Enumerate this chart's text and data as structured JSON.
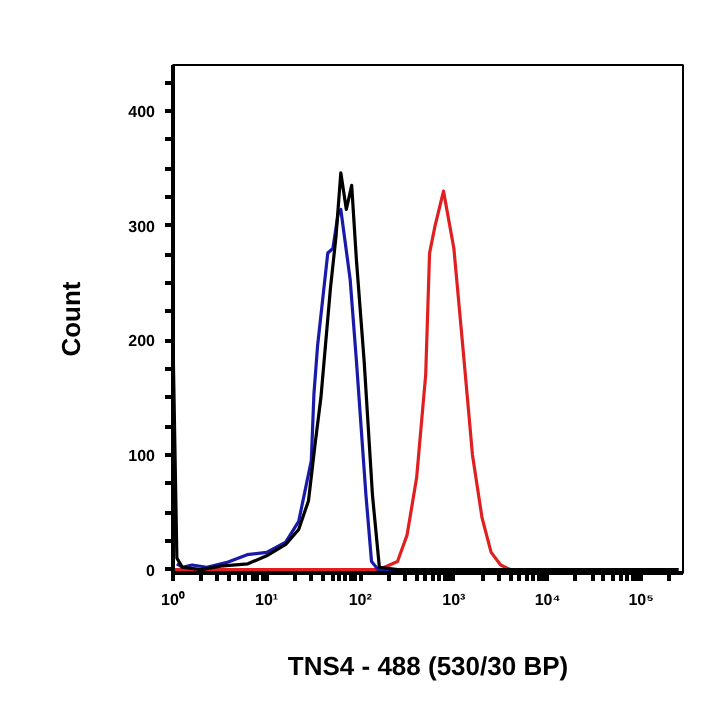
{
  "chart_data": {
    "type": "line",
    "xlabel": "TNS4 - 488 (530/30 BP)",
    "ylabel": "Count",
    "log": "x",
    "grid": false,
    "marker": "none",
    "line_style": "solid",
    "xlim": [
      1,
      280000
    ],
    "ylim": [
      -3,
      440
    ],
    "xticks": [
      {
        "value": 1,
        "label": "10⁰"
      },
      {
        "value": 2,
        "label": null
      },
      {
        "value": 3,
        "label": null
      },
      {
        "value": 4,
        "label": null
      },
      {
        "value": 5,
        "label": null
      },
      {
        "value": 6,
        "label": null
      },
      {
        "value": 7,
        "label": null
      },
      {
        "value": 8,
        "label": null
      },
      {
        "value": 9,
        "label": null
      },
      {
        "value": 10,
        "label": "10¹"
      },
      {
        "value": 20,
        "label": null
      },
      {
        "value": 30,
        "label": null
      },
      {
        "value": 40,
        "label": null
      },
      {
        "value": 50,
        "label": null
      },
      {
        "value": 60,
        "label": null
      },
      {
        "value": 70,
        "label": null
      },
      {
        "value": 80,
        "label": null
      },
      {
        "value": 90,
        "label": null
      },
      {
        "value": 100,
        "label": "10²"
      },
      {
        "value": 200,
        "label": null
      },
      {
        "value": 300,
        "label": null
      },
      {
        "value": 400,
        "label": null
      },
      {
        "value": 500,
        "label": null
      },
      {
        "value": 600,
        "label": null
      },
      {
        "value": 700,
        "label": null
      },
      {
        "value": 800,
        "label": null
      },
      {
        "value": 900,
        "label": null
      },
      {
        "value": 1000,
        "label": "10³"
      },
      {
        "value": 2000,
        "label": null
      },
      {
        "value": 3000,
        "label": null
      },
      {
        "value": 4000,
        "label": null
      },
      {
        "value": 5000,
        "label": null
      },
      {
        "value": 6000,
        "label": null
      },
      {
        "value": 7000,
        "label": null
      },
      {
        "value": 8000,
        "label": null
      },
      {
        "value": 9000,
        "label": null
      },
      {
        "value": 10000,
        "label": "10⁴"
      },
      {
        "value": 20000,
        "label": null
      },
      {
        "value": 30000,
        "label": null
      },
      {
        "value": 40000,
        "label": null
      },
      {
        "value": 50000,
        "label": null
      },
      {
        "value": 60000,
        "label": null
      },
      {
        "value": 70000,
        "label": null
      },
      {
        "value": 80000,
        "label": null
      },
      {
        "value": 90000,
        "label": null
      },
      {
        "value": 100000,
        "label": "10⁵"
      },
      {
        "value": 200000,
        "label": null
      }
    ],
    "yticks": [
      0,
      {
        "value": 25,
        "label": null
      },
      {
        "value": 50,
        "label": null
      },
      {
        "value": 75,
        "label": null
      },
      100,
      {
        "value": 125,
        "label": null
      },
      {
        "value": 150,
        "label": null
      },
      {
        "value": 175,
        "label": null
      },
      200,
      {
        "value": 225,
        "label": null
      },
      {
        "value": 250,
        "label": null
      },
      {
        "value": 275,
        "label": null
      },
      300,
      {
        "value": 325,
        "label": null
      },
      {
        "value": 350,
        "label": null
      },
      {
        "value": 375,
        "label": null
      },
      400,
      {
        "value": 425,
        "label": null
      }
    ],
    "series": [
      {
        "color": "#e02020",
        "x": [
          1,
          160,
          250,
          316,
          400,
          500,
          550,
          630,
          775,
          1000,
          1260,
          1580,
          2000,
          2500,
          3160,
          4000,
          250000
        ],
        "values": [
          0,
          0,
          7,
          30,
          80,
          170,
          276,
          300,
          330,
          280,
          190,
          100,
          45,
          15,
          4,
          0,
          0
        ]
      },
      {
        "color": "#1a1aaa",
        "x": [
          1.1,
          1.26,
          1.6,
          2.3,
          3.7,
          6.2,
          10,
          16,
          22,
          30,
          32,
          35,
          45,
          51,
          58,
          62,
          78,
          91,
          115,
          132,
          155,
          250000
        ],
        "values": [
          5,
          2,
          4,
          2,
          6,
          13,
          15,
          24,
          42,
          95,
          153,
          195,
          276,
          280,
          310,
          314,
          253,
          182,
          65,
          7,
          0,
          0
        ]
      },
      {
        "color": "#000000",
        "x": [
          1,
          1.1,
          1.26,
          2,
          3.2,
          6.3,
          10,
          16,
          22,
          28,
          33,
          38,
          48,
          55,
          62,
          71,
          81,
          91,
          110,
          135,
          160,
          250,
          250000
        ],
        "values": [
          200,
          10,
          2,
          0,
          3,
          5,
          12,
          22,
          35,
          60,
          110,
          150,
          245,
          290,
          346,
          314,
          335,
          270,
          182,
          65,
          2,
          0,
          0
        ]
      }
    ]
  }
}
